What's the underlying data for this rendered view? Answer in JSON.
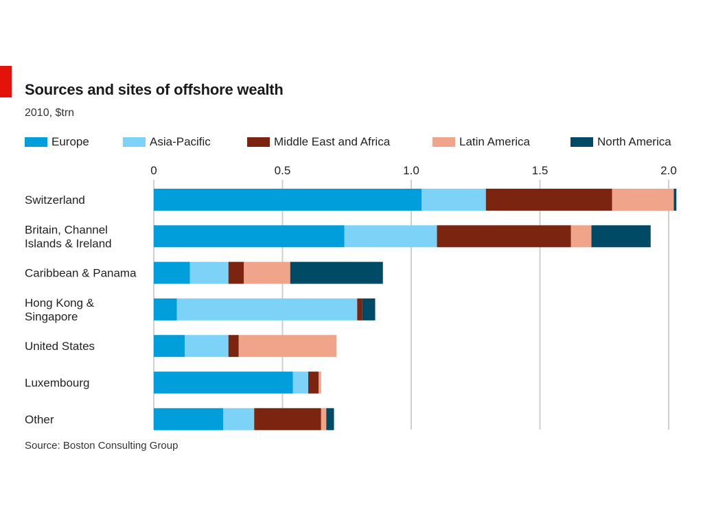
{
  "header": {
    "title": "Sources and sites of offshore wealth",
    "subtitle": "2010, $trn"
  },
  "footer": {
    "source": "Source: Boston Consulting Group"
  },
  "colors": {
    "accent_tag": "#e3120b",
    "gridline": "#cfcfcf"
  },
  "chart_data": {
    "type": "bar",
    "orientation": "horizontal",
    "stacked": true,
    "title": "Sources and sites of offshore wealth",
    "subtitle": "2010, $trn",
    "xlabel": "",
    "ylabel": "",
    "xlim": [
      0,
      2.0
    ],
    "x_ticks": [
      {
        "value": 0,
        "label": "0"
      },
      {
        "value": 0.5,
        "label": "0.5"
      },
      {
        "value": 1.0,
        "label": "1.0"
      },
      {
        "value": 1.5,
        "label": "1.5"
      },
      {
        "value": 2.0,
        "label": "2.0"
      }
    ],
    "grid": "vertical",
    "legend_position": "top",
    "categories": [
      [
        "Switzerland"
      ],
      [
        "Britain, Channel",
        "Islands & Ireland"
      ],
      [
        "Caribbean & Panama"
      ],
      [
        "Hong Kong &",
        "Singapore"
      ],
      [
        "United States"
      ],
      [
        "Luxembourg"
      ],
      [
        "Other"
      ]
    ],
    "series": [
      {
        "name": "Europe",
        "color": "#009fdb",
        "values": [
          1.04,
          0.74,
          0.14,
          0.09,
          0.12,
          0.54,
          0.27
        ]
      },
      {
        "name": "Asia-Pacific",
        "color": "#7dd3f7",
        "values": [
          0.25,
          0.36,
          0.15,
          0.7,
          0.17,
          0.06,
          0.12
        ]
      },
      {
        "name": "Middle East and Africa",
        "color": "#7b2510",
        "values": [
          0.49,
          0.52,
          0.06,
          0.02,
          0.04,
          0.04,
          0.26
        ]
      },
      {
        "name": "Latin America",
        "color": "#f0a48a",
        "values": [
          0.24,
          0.08,
          0.18,
          0.0,
          0.38,
          0.01,
          0.02
        ]
      },
      {
        "name": "North America",
        "color": "#004a66",
        "values": [
          0.01,
          0.23,
          0.36,
          0.05,
          0.0,
          0.0,
          0.03
        ]
      }
    ]
  }
}
